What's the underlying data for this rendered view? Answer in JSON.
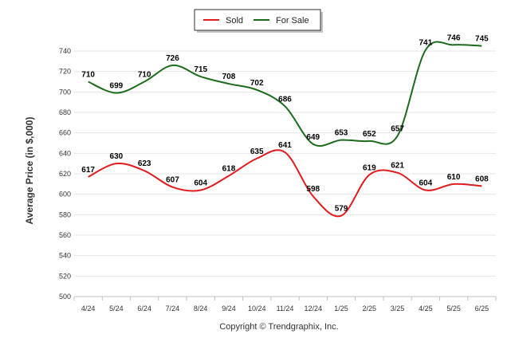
{
  "chart_data": {
    "type": "line",
    "categories": [
      "4/24",
      "5/24",
      "6/24",
      "7/24",
      "8/24",
      "9/24",
      "10/24",
      "11/24",
      "12/24",
      "1/25",
      "2/25",
      "3/25",
      "4/25",
      "5/25",
      "6/25"
    ],
    "series": [
      {
        "name": "Sold",
        "color": "#e31a1c",
        "values": [
          617,
          630,
          623,
          607,
          604,
          618,
          635,
          641,
          598,
          579,
          619,
          621,
          604,
          610,
          608
        ]
      },
      {
        "name": "For Sale",
        "color": "#1a6b1a",
        "values": [
          710,
          699,
          710,
          726,
          715,
          708,
          702,
          686,
          649,
          653,
          652,
          657,
          741,
          746,
          745
        ]
      }
    ],
    "ylabel": "Average Price (in $,000)",
    "ylim": [
      500,
      760
    ],
    "yticks": [
      500,
      520,
      540,
      560,
      580,
      600,
      620,
      640,
      660,
      680,
      700,
      720,
      740
    ],
    "grid": true,
    "legend_position": "top-center",
    "credit": "Copyright © Trendgraphix, Inc."
  }
}
